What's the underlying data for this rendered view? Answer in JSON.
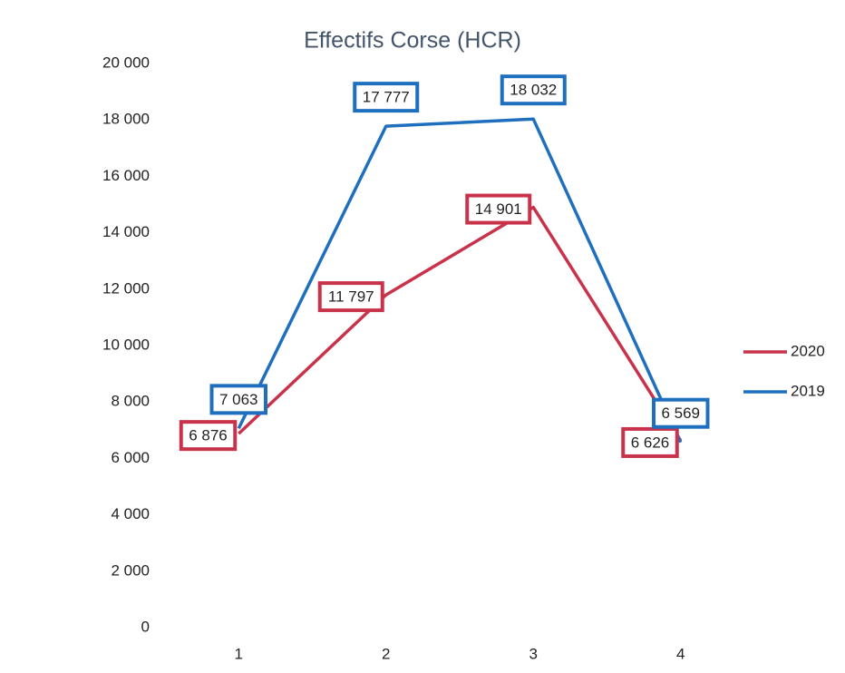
{
  "chart_data": {
    "type": "line",
    "title": "Effectifs Corse (HCR)",
    "categories": [
      "1",
      "2",
      "3",
      "4"
    ],
    "series": [
      {
        "name": "2020",
        "color": "#c8324a",
        "values": [
          6876,
          11797,
          14901,
          6626
        ],
        "value_labels": [
          "6 876",
          "11 797",
          "14 901",
          "6 626"
        ]
      },
      {
        "name": "2019",
        "color": "#1f6fbf",
        "values": [
          7063,
          17777,
          18032,
          6569
        ],
        "value_labels": [
          "7 063",
          "17 777",
          "18 032",
          "6 569"
        ]
      }
    ],
    "ylim": [
      0,
      20000
    ],
    "yticks": [
      0,
      {
        "value": 2000,
        "label": "2 000"
      },
      {
        "value": 4000,
        "label": "4 000"
      },
      {
        "value": 6000,
        "label": "6 000"
      },
      {
        "value": 8000,
        "label": "8 000"
      },
      {
        "value": 10000,
        "label": "10 000"
      },
      {
        "value": 12000,
        "label": "12 000"
      },
      {
        "value": 14000,
        "label": "14 000"
      },
      {
        "value": 16000,
        "label": "16 000"
      },
      {
        "value": 18000,
        "label": "18 000"
      },
      {
        "value": 20000,
        "label": "20 000"
      }
    ],
    "grid": false,
    "legend": "right"
  }
}
